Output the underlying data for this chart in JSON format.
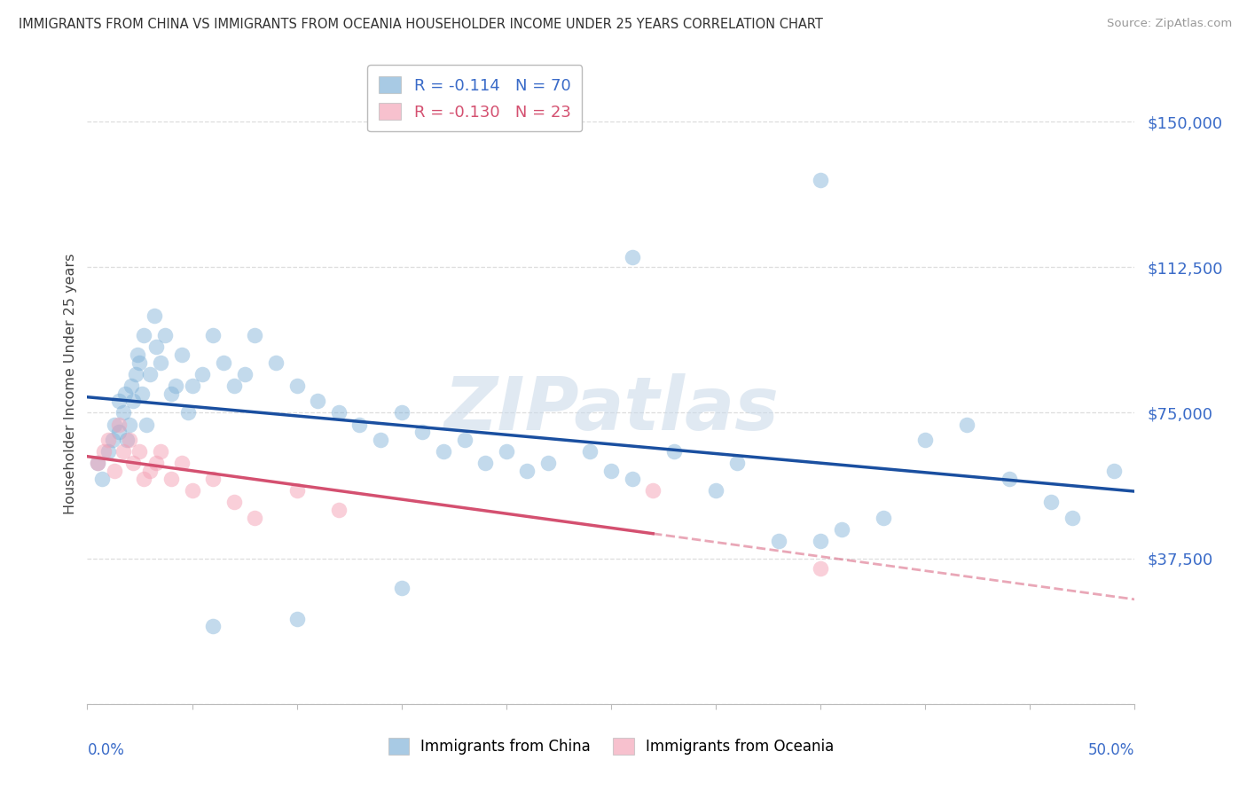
{
  "title": "IMMIGRANTS FROM CHINA VS IMMIGRANTS FROM OCEANIA HOUSEHOLDER INCOME UNDER 25 YEARS CORRELATION CHART",
  "source": "Source: ZipAtlas.com",
  "ylabel": "Householder Income Under 25 years",
  "xlim": [
    0.0,
    0.5
  ],
  "ylim": [
    0,
    165000
  ],
  "yticks": [
    0,
    37500,
    75000,
    112500,
    150000
  ],
  "ytick_labels": [
    "",
    "$37,500",
    "$75,000",
    "$112,500",
    "$150,000"
  ],
  "legend1_R": "-0.114",
  "legend1_N": "70",
  "legend2_R": "-0.130",
  "legend2_N": "23",
  "china_color": "#7aaed6",
  "oceania_color": "#f4a0b5",
  "china_line_color": "#1a4fa0",
  "oceania_line_color": "#d45070",
  "background_color": "#ffffff",
  "grid_color": "#dddddd",
  "watermark": "ZIPatlas",
  "china_x": [
    0.005,
    0.007,
    0.01,
    0.012,
    0.013,
    0.015,
    0.015,
    0.017,
    0.018,
    0.019,
    0.02,
    0.021,
    0.022,
    0.023,
    0.024,
    0.025,
    0.026,
    0.027,
    0.028,
    0.03,
    0.032,
    0.033,
    0.035,
    0.037,
    0.04,
    0.042,
    0.045,
    0.048,
    0.05,
    0.055,
    0.06,
    0.065,
    0.07,
    0.075,
    0.08,
    0.09,
    0.1,
    0.11,
    0.12,
    0.13,
    0.14,
    0.15,
    0.16,
    0.17,
    0.18,
    0.19,
    0.2,
    0.21,
    0.22,
    0.24,
    0.25,
    0.26,
    0.28,
    0.3,
    0.31,
    0.33,
    0.35,
    0.36,
    0.38,
    0.4,
    0.42,
    0.44,
    0.46,
    0.47,
    0.49,
    0.35,
    0.26,
    0.15,
    0.1,
    0.06
  ],
  "china_y": [
    62000,
    58000,
    65000,
    68000,
    72000,
    70000,
    78000,
    75000,
    80000,
    68000,
    72000,
    82000,
    78000,
    85000,
    90000,
    88000,
    80000,
    95000,
    72000,
    85000,
    100000,
    92000,
    88000,
    95000,
    80000,
    82000,
    90000,
    75000,
    82000,
    85000,
    95000,
    88000,
    82000,
    85000,
    95000,
    88000,
    82000,
    78000,
    75000,
    72000,
    68000,
    75000,
    70000,
    65000,
    68000,
    62000,
    65000,
    60000,
    62000,
    65000,
    60000,
    58000,
    65000,
    55000,
    62000,
    42000,
    42000,
    45000,
    48000,
    68000,
    72000,
    58000,
    52000,
    48000,
    60000,
    135000,
    115000,
    30000,
    22000,
    20000
  ],
  "oceania_x": [
    0.005,
    0.008,
    0.01,
    0.013,
    0.015,
    0.017,
    0.02,
    0.022,
    0.025,
    0.027,
    0.03,
    0.033,
    0.035,
    0.04,
    0.045,
    0.05,
    0.06,
    0.07,
    0.08,
    0.1,
    0.12,
    0.27,
    0.35
  ],
  "oceania_y": [
    62000,
    65000,
    68000,
    60000,
    72000,
    65000,
    68000,
    62000,
    65000,
    58000,
    60000,
    62000,
    65000,
    58000,
    62000,
    55000,
    58000,
    52000,
    48000,
    55000,
    50000,
    55000,
    35000
  ]
}
